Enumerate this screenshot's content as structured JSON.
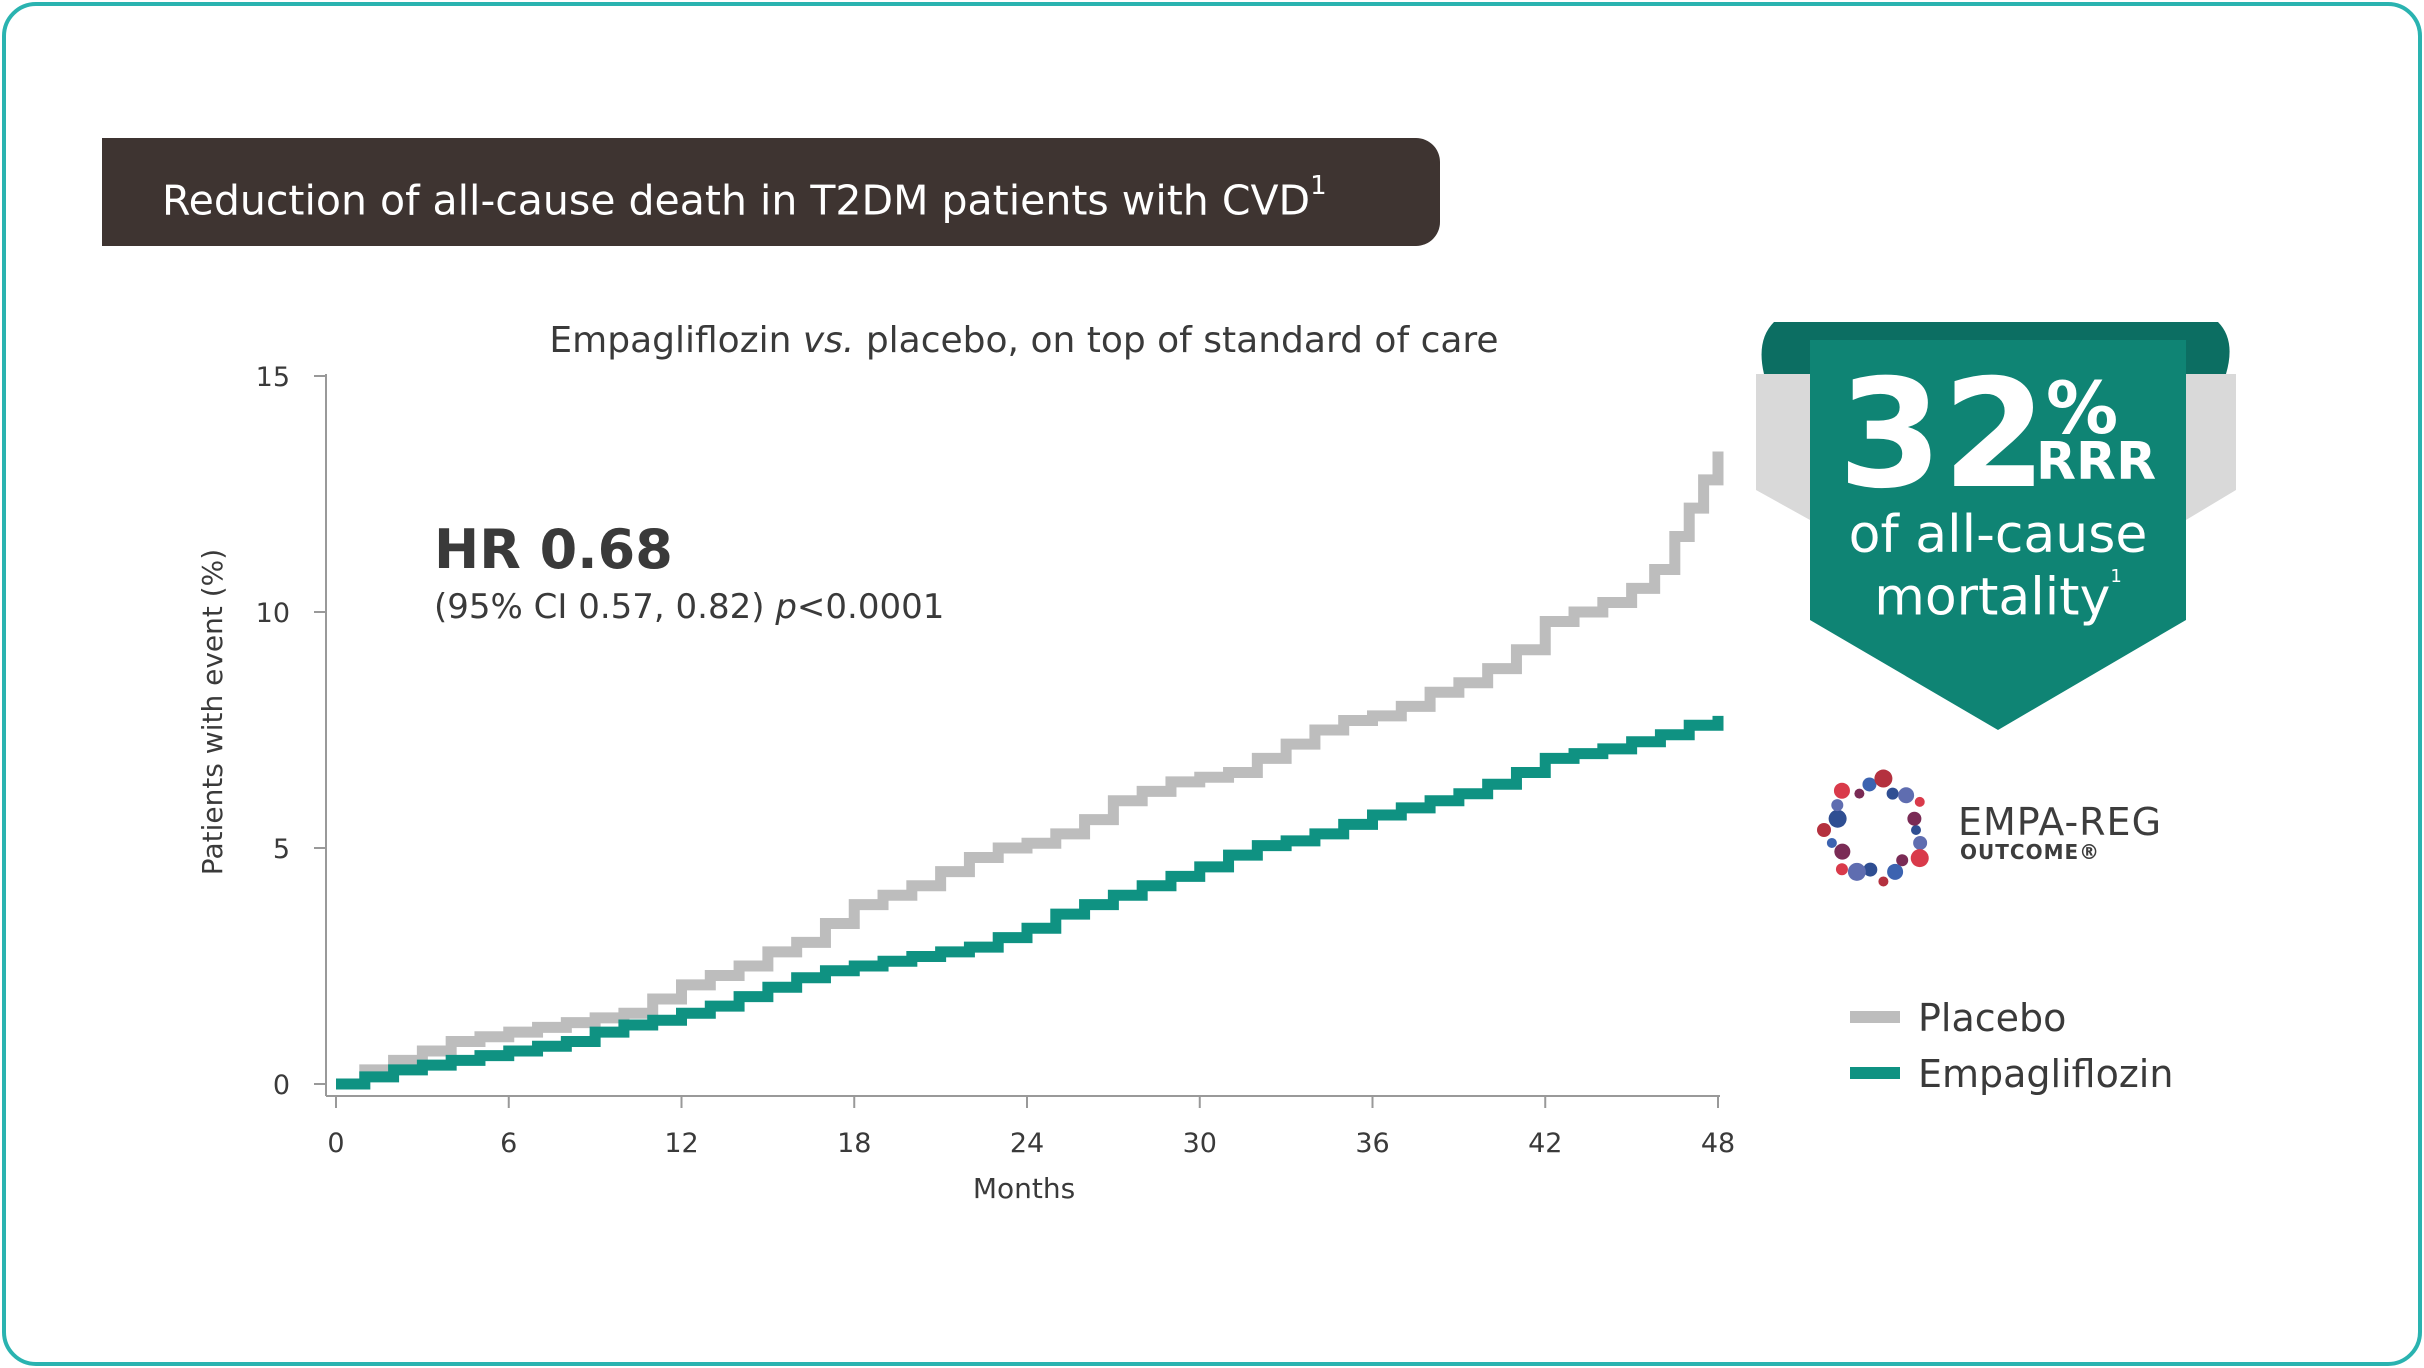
{
  "banner": {
    "title": "Reduction of all-cause death in T2DM patients with CVD",
    "superscript": "1"
  },
  "badge": {
    "number": "32",
    "percent": "%",
    "rrr": "RRR",
    "line1": "of all-cause",
    "line2": "mortality",
    "superscript": "1"
  },
  "logo": {
    "line1": "EMPA-REG",
    "line2": "OUTCOME®"
  },
  "legend": {
    "placebo": "Placebo",
    "empagliflozin": "Empagliflozin"
  },
  "colors": {
    "border": "#2ab3b0",
    "banner": "#3e3431",
    "placebo": "#bdbdbd",
    "empagliflozin": "#0f9282",
    "badge": "#0f8474"
  },
  "chart_data": {
    "type": "line",
    "title_parts": [
      "Empagliflozin ",
      "vs.",
      " placebo, on top of standard of care"
    ],
    "xlabel": "Months",
    "ylabel": "Patients with event (%)",
    "xlim": [
      0,
      48
    ],
    "ylim": [
      0,
      15
    ],
    "xticks": [
      0,
      6,
      12,
      18,
      24,
      30,
      36,
      42,
      48
    ],
    "yticks": [
      0,
      5,
      10,
      15
    ],
    "annotation": {
      "hr": "HR 0.68",
      "ci": "(95% CI 0.57, 0.82) ",
      "p_label": "p",
      "p_value": "<0.0001"
    },
    "series": [
      {
        "name": "Placebo",
        "color": "#bdbdbd",
        "x": [
          0,
          1,
          2,
          3,
          4,
          5,
          6,
          7,
          8,
          9,
          10,
          11,
          12,
          13,
          14,
          15,
          16,
          17,
          18,
          19,
          20,
          21,
          22,
          23,
          24,
          25,
          26,
          27,
          28,
          29,
          30,
          31,
          32,
          33,
          34,
          35,
          36,
          37,
          38,
          39,
          40,
          41,
          42,
          43,
          44,
          45,
          45.8,
          46.5,
          47,
          47.5,
          48
        ],
        "y": [
          0,
          0.3,
          0.5,
          0.7,
          0.9,
          1.0,
          1.1,
          1.2,
          1.3,
          1.4,
          1.5,
          1.8,
          2.1,
          2.3,
          2.5,
          2.8,
          3.0,
          3.4,
          3.8,
          4.0,
          4.2,
          4.5,
          4.8,
          5.0,
          5.1,
          5.3,
          5.6,
          6.0,
          6.2,
          6.4,
          6.5,
          6.6,
          6.9,
          7.2,
          7.5,
          7.7,
          7.8,
          8.0,
          8.3,
          8.5,
          8.8,
          9.2,
          9.8,
          10.0,
          10.2,
          10.5,
          10.9,
          11.6,
          12.2,
          12.8,
          13.4
        ]
      },
      {
        "name": "Empagliflozin",
        "color": "#0f9282",
        "x": [
          0,
          1,
          2,
          3,
          4,
          5,
          6,
          7,
          8,
          9,
          10,
          11,
          12,
          13,
          14,
          15,
          16,
          17,
          18,
          19,
          20,
          21,
          22,
          23,
          24,
          25,
          26,
          27,
          28,
          29,
          30,
          31,
          32,
          33,
          34,
          35,
          36,
          37,
          38,
          39,
          40,
          41,
          42,
          43,
          44,
          45,
          46,
          47,
          48
        ],
        "y": [
          0,
          0.15,
          0.3,
          0.4,
          0.5,
          0.6,
          0.7,
          0.8,
          0.9,
          1.1,
          1.25,
          1.35,
          1.5,
          1.65,
          1.85,
          2.05,
          2.25,
          2.4,
          2.5,
          2.6,
          2.7,
          2.8,
          2.9,
          3.1,
          3.3,
          3.6,
          3.8,
          4.0,
          4.2,
          4.4,
          4.6,
          4.85,
          5.05,
          5.15,
          5.3,
          5.5,
          5.7,
          5.85,
          6.0,
          6.15,
          6.35,
          6.6,
          6.9,
          7.0,
          7.1,
          7.25,
          7.4,
          7.6,
          7.8
        ]
      }
    ]
  }
}
